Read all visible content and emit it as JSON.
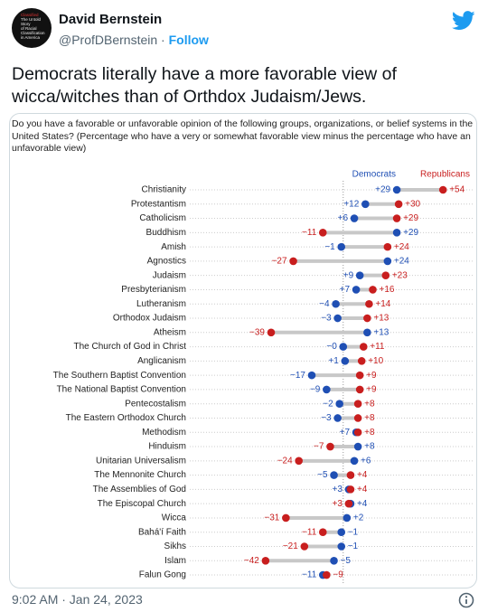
{
  "tweet": {
    "author": "David Bernstein",
    "handle": "@ProfDBernstein",
    "separator": "·",
    "follow": "Follow",
    "avatar_text": [
      "Classified",
      "The Untold",
      "Story",
      "of Racial",
      "Classification",
      "in America"
    ],
    "text": "Democrats literally have a more favorable view of wicca/witches than of Orthdox Judaism/Jews.",
    "timestamp": "9:02 AM · Jan 24, 2023"
  },
  "chart_data": {
    "type": "dumbbell",
    "title": "Do you have a favorable or unfavorable opinion of the following groups, organizations, or belief systems in the United States? (Percentage who have a very or somewhat favorable view minus the percentage who have an unfavorable view)",
    "categories": [
      "Christianity",
      "Protestantism",
      "Catholicism",
      "Buddhism",
      "Amish",
      "Agnostics",
      "Judaism",
      "Presbyterianism",
      "Lutheranism",
      "Orthodox Judaism",
      "Atheism",
      "The Church of God in Christ",
      "Anglicanism",
      "The Southern Baptist Convention",
      "The National Baptist Convention",
      "Pentecostalism",
      "The Eastern Orthodox Church",
      "Methodism",
      "Hinduism",
      "Unitarian Universalism",
      "The Mennonite Church",
      "The Assemblies of God",
      "The Episcopal Church",
      "Wicca",
      "Bahá'í Faith",
      "Sikhs",
      "Islam",
      "Falun Gong"
    ],
    "series": [
      {
        "name": "Democrats",
        "color": "#1f4fb4",
        "values": [
          29,
          12,
          6,
          29,
          -1,
          24,
          9,
          7,
          -4,
          -3,
          13,
          0,
          1,
          -17,
          -9,
          -2,
          -3,
          7,
          8,
          6,
          -5,
          3,
          4,
          2,
          -1,
          -1,
          -5,
          -11
        ],
        "value_labels": [
          "+29",
          "+12",
          "+6",
          "+29",
          "−1",
          "+24",
          "+9",
          "+7",
          "−4",
          "−3",
          "+13",
          "−0",
          "+1",
          "−17",
          "−9",
          "−2",
          "−3",
          "+7",
          "+8",
          "+6",
          "−5",
          "+3",
          "+4",
          "+2",
          "−1",
          "−1",
          "−5",
          "−11"
        ]
      },
      {
        "name": "Republicans",
        "color": "#c81e1e",
        "values": [
          54,
          30,
          29,
          -11,
          24,
          -27,
          23,
          16,
          14,
          13,
          -39,
          11,
          10,
          9,
          9,
          8,
          8,
          8,
          -7,
          -24,
          4,
          4,
          3,
          -31,
          -11,
          -21,
          -42,
          -9
        ],
        "value_labels": [
          "+54",
          "+30",
          "+29",
          "−11",
          "+24",
          "−27",
          "+23",
          "+16",
          "+14",
          "+13",
          "−39",
          "+11",
          "+10",
          "+9",
          "+9",
          "+8",
          "+8",
          "+8",
          "−7",
          "−24",
          "+4",
          "+4",
          "+3",
          "−31",
          "−11",
          "−21",
          "−42",
          "−9"
        ]
      }
    ],
    "xlim": [
      -83,
      71
    ]
  }
}
